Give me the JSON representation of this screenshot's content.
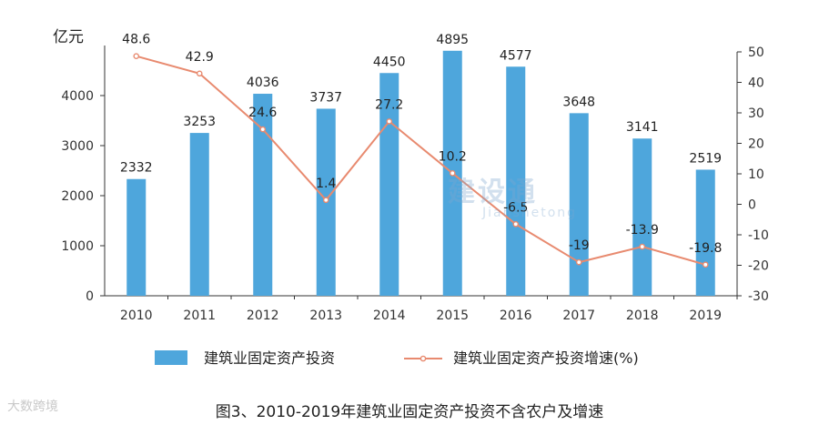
{
  "chart_data": {
    "type": "bar",
    "categories": [
      "2010",
      "2011",
      "2012",
      "2013",
      "2014",
      "2015",
      "2016",
      "2017",
      "2018",
      "2019"
    ],
    "series": [
      {
        "name": "建筑业固定资产投资",
        "kind": "bar",
        "axis": "left",
        "color": "#4ea6dc",
        "values": [
          2332,
          3253,
          4036,
          3737,
          4450,
          4895,
          4577,
          3648,
          3141,
          2519
        ],
        "labels": [
          "2332",
          "3253",
          "4036",
          "3737",
          "4450",
          "4895",
          "4577",
          "3648",
          "3141",
          "2519"
        ]
      },
      {
        "name": "建筑业固定资产投资增速(%)",
        "kind": "line",
        "axis": "right",
        "color": "#e88a6f",
        "values": [
          48.6,
          42.9,
          24.6,
          1.4,
          27.2,
          10.2,
          -6.5,
          -19,
          -13.9,
          -19.8
        ],
        "labels": [
          "48.6",
          "42.9",
          "24.6",
          "1.4",
          "27.2",
          "10.2",
          "-6.5",
          "-19",
          "-13.9",
          "-19.8"
        ]
      }
    ],
    "left_axis": {
      "label": "亿元",
      "range": [
        0,
        5000
      ],
      "ticks": [
        "0",
        "1000",
        "2000",
        "3000",
        "4000"
      ]
    },
    "right_axis": {
      "range": [
        -30,
        50
      ],
      "ticks": [
        "-30",
        "-20",
        "-10",
        "0",
        "10",
        "20",
        "30",
        "40",
        "50"
      ]
    },
    "legend_position": "bottom",
    "grid": false
  },
  "caption": "图3、2010-2019年建筑业固定资产投资不含农户及增速",
  "watermark": {
    "main": "建设通",
    "sub": "Jianshetong"
  },
  "brand": "大数跨境"
}
